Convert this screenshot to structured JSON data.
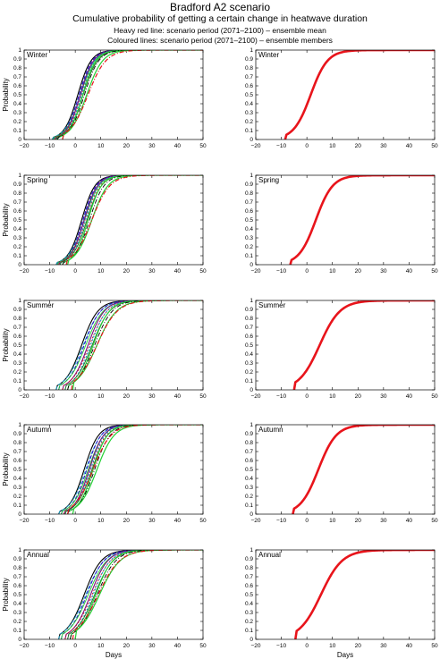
{
  "header": {
    "title": "Bradford A2 scenario",
    "subtitle": "Cumulative probability of getting a certain change in heatwave duration",
    "note_mean": "Heavy red line: scenario period (2071–2100) – ensemble mean",
    "note_members": "Coloured lines: scenario period (2071–2100) – ensemble members"
  },
  "colors": {
    "mean": "#e8141b",
    "members": [
      "#000000",
      "#2b19c9",
      "#7a0f7a",
      "#11a0c8",
      "#22d133",
      "#c71b22",
      "#1a6d1a"
    ]
  },
  "chart_data": [
    {
      "type": "line",
      "panel": "Winter",
      "ylabel": "Probability",
      "xlim": [
        -20,
        50
      ],
      "ylim": [
        0,
        1
      ],
      "xticks": [
        "−20",
        "−10",
        "0",
        "10",
        "20",
        "30",
        "40",
        "50"
      ],
      "yticks": [
        "0",
        "0.1",
        "0.2",
        "0.3",
        "0.4",
        "0.5",
        "0.6",
        "0.7",
        "0.8",
        "0.9",
        "1"
      ],
      "series": [
        {
          "role": "ensemble mean",
          "median": 5,
          "spread": 3.5
        },
        {
          "role": "ensemble members",
          "medians": [
            1,
            1.5,
            2,
            2.5,
            3
          ],
          "spread": 2.6
        }
      ]
    },
    {
      "type": "line",
      "panel": "Winter",
      "xlim": [
        -20,
        50
      ],
      "ylim": [
        0,
        1
      ],
      "xticks": [
        "−20",
        "−10",
        "0",
        "10",
        "20",
        "30",
        "40",
        "50"
      ],
      "yticks": [
        "0",
        "0.1",
        "0.2",
        "0.3",
        "0.4",
        "0.5",
        "0.6",
        "0.7",
        "0.8",
        "0.9",
        "1"
      ],
      "series": [
        {
          "role": "ensemble mean",
          "median": 1.5,
          "spread": 3.3
        }
      ]
    },
    {
      "type": "line",
      "panel": "Spring",
      "ylabel": "Probability",
      "xlim": [
        -20,
        50
      ],
      "ylim": [
        0,
        1
      ],
      "xticks": [
        "−20",
        "−10",
        "0",
        "10",
        "20",
        "30",
        "40",
        "50"
      ],
      "yticks": [
        "0",
        "0.1",
        "0.2",
        "0.3",
        "0.4",
        "0.5",
        "0.6",
        "0.7",
        "0.8",
        "0.9",
        "1"
      ],
      "series": [
        {
          "role": "ensemble mean",
          "median": 6.5,
          "spread": 3.5
        },
        {
          "role": "ensemble members",
          "medians": [
            2.5,
            3,
            3.5,
            4,
            5
          ],
          "spread": 2.6
        }
      ]
    },
    {
      "type": "line",
      "panel": "Spring",
      "xlim": [
        -20,
        50
      ],
      "ylim": [
        0,
        1
      ],
      "xticks": [
        "−20",
        "−10",
        "0",
        "10",
        "20",
        "30",
        "40",
        "50"
      ],
      "yticks": [
        "0",
        "0.1",
        "0.2",
        "0.3",
        "0.4",
        "0.5",
        "0.6",
        "0.7",
        "0.8",
        "0.9",
        "1"
      ],
      "series": [
        {
          "role": "ensemble mean",
          "median": 3.5,
          "spread": 3.3
        }
      ]
    },
    {
      "type": "line",
      "panel": "Summer",
      "ylabel": "Probability",
      "xlim": [
        -20,
        50
      ],
      "ylim": [
        0,
        1
      ],
      "xticks": [
        "−20",
        "−10",
        "0",
        "10",
        "20",
        "30",
        "40",
        "50"
      ],
      "yticks": [
        "0",
        "0.1",
        "0.2",
        "0.3",
        "0.4",
        "0.5",
        "0.6",
        "0.7",
        "0.8",
        "0.9",
        "1"
      ],
      "series": [
        {
          "role": "ensemble mean",
          "median": 8.5,
          "spread": 4
        },
        {
          "role": "ensemble members",
          "medians": [
            2.5,
            3.5,
            5,
            6,
            7
          ],
          "spread": 3.2
        }
      ]
    },
    {
      "type": "line",
      "panel": "Summer",
      "xlim": [
        -20,
        50
      ],
      "ylim": [
        0,
        1
      ],
      "xticks": [
        "−20",
        "−10",
        "0",
        "10",
        "20",
        "30",
        "40",
        "50"
      ],
      "yticks": [
        "0",
        "0.1",
        "0.2",
        "0.3",
        "0.4",
        "0.5",
        "0.6",
        "0.7",
        "0.8",
        "0.9",
        "1"
      ],
      "series": [
        {
          "role": "ensemble mean",
          "median": 5,
          "spread": 4
        }
      ]
    },
    {
      "type": "line",
      "panel": "Autumn",
      "ylabel": "Probability",
      "xlim": [
        -20,
        50
      ],
      "ylim": [
        0,
        1
      ],
      "xticks": [
        "−20",
        "−10",
        "0",
        "10",
        "20",
        "30",
        "40",
        "50"
      ],
      "yticks": [
        "0",
        "0.1",
        "0.2",
        "0.3",
        "0.4",
        "0.5",
        "0.6",
        "0.7",
        "0.8",
        "0.9",
        "1"
      ],
      "series": [
        {
          "role": "ensemble mean",
          "median": 7,
          "spread": 3.5
        },
        {
          "role": "ensemble members",
          "medians": [
            3.5,
            4.5,
            5.5,
            6,
            7
          ],
          "spread": 2.8
        }
      ]
    },
    {
      "type": "line",
      "panel": "Autumn",
      "xlim": [
        -20,
        50
      ],
      "ylim": [
        0,
        1
      ],
      "xticks": [
        "−20",
        "−10",
        "0",
        "10",
        "20",
        "30",
        "40",
        "50"
      ],
      "yticks": [
        "0",
        "0.1",
        "0.2",
        "0.3",
        "0.4",
        "0.5",
        "0.6",
        "0.7",
        "0.8",
        "0.9",
        "1"
      ],
      "series": [
        {
          "role": "ensemble mean",
          "median": 4.5,
          "spread": 3.5
        }
      ]
    },
    {
      "type": "line",
      "panel": "Annual",
      "ylabel": "Probability",
      "xlabel": "Days",
      "xlim": [
        -20,
        50
      ],
      "ylim": [
        0,
        1
      ],
      "xticks": [
        "−20",
        "−10",
        "0",
        "10",
        "20",
        "30",
        "40",
        "50"
      ],
      "yticks": [
        "0",
        "0.1",
        "0.2",
        "0.3",
        "0.4",
        "0.5",
        "0.6",
        "0.7",
        "0.8",
        "0.9",
        "1"
      ],
      "series": [
        {
          "role": "ensemble mean",
          "median": 9,
          "spread": 4.2
        },
        {
          "role": "ensemble members",
          "medians": [
            3.5,
            4.5,
            6,
            7,
            8
          ],
          "spread": 3.4
        }
      ]
    },
    {
      "type": "line",
      "panel": "Annual",
      "xlabel": "Days",
      "xlim": [
        -20,
        50
      ],
      "ylim": [
        0,
        1
      ],
      "xticks": [
        "−20",
        "−10",
        "0",
        "10",
        "20",
        "30",
        "40",
        "50"
      ],
      "yticks": [
        "0",
        "0.1",
        "0.2",
        "0.3",
        "0.4",
        "0.5",
        "0.6",
        "0.7",
        "0.8",
        "0.9",
        "1"
      ],
      "series": [
        {
          "role": "ensemble mean",
          "median": 5.5,
          "spread": 4.2
        }
      ]
    }
  ]
}
